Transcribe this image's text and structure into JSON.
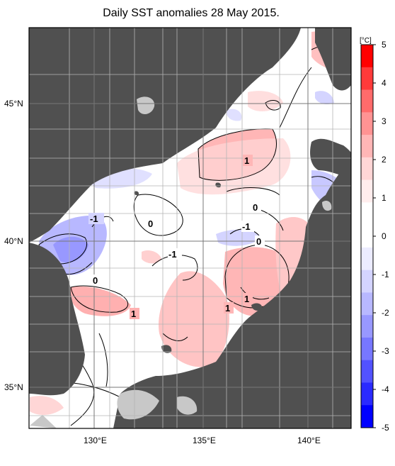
{
  "title": "Daily SST anomalies 28 May 2015.",
  "map": {
    "lat_labels": [
      "45°N",
      "40°N",
      "35°N"
    ],
    "lon_labels": [
      "130°E",
      "135°E",
      "140°E"
    ],
    "contour_labels": [
      "1",
      "0",
      "-1",
      "0",
      "-1",
      "0",
      "0",
      "-1",
      "0",
      "1",
      "1",
      "1"
    ]
  },
  "colorbar": {
    "unit": "[°C]",
    "ticks": [
      "5",
      "4",
      "3",
      "2",
      "1",
      "0",
      "-1",
      "-2",
      "-3",
      "-4",
      "-5"
    ],
    "colors": [
      "#ff0000",
      "#ff3a3a",
      "#ff6b6b",
      "#ff9393",
      "#ffb6b6",
      "#ffd6d6",
      "#ffeded",
      "#ffffff",
      "#ffffff",
      "#ececff",
      "#d4d4ff",
      "#b8b8ff",
      "#9898ff",
      "#7777ff",
      "#5252ff",
      "#2a2aff",
      "#0000ff"
    ]
  },
  "colors": {
    "land": "#505050",
    "ice_land": "#c8c8c8",
    "grid": "#b4b4b4"
  }
}
